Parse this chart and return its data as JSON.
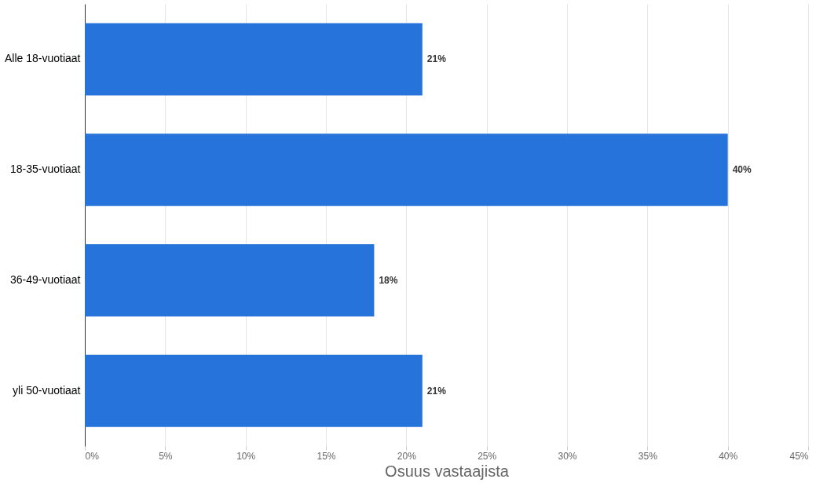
{
  "chart_data": {
    "type": "bar",
    "orientation": "horizontal",
    "xlabel": "Osuus vastaajista",
    "categories": [
      "Alle 18-vuotiaat",
      "18-35-vuotiaat",
      "36-49-vuotiaat",
      "yli 50-vuotiaat"
    ],
    "series": [
      {
        "color": "#2673db",
        "values": [
          21,
          40,
          18,
          21
        ],
        "value_labels": [
          "21%",
          "40%",
          "18%",
          "21%"
        ]
      }
    ],
    "xlim": [
      0,
      45
    ],
    "xticks": [
      {
        "value": 0,
        "label": "0%"
      },
      {
        "value": 5,
        "label": "5%"
      },
      {
        "value": 10,
        "label": "10%"
      },
      {
        "value": 15,
        "label": "15%"
      },
      {
        "value": 20,
        "label": "20%"
      },
      {
        "value": 25,
        "label": "25%"
      },
      {
        "value": 30,
        "label": "30%"
      },
      {
        "value": 35,
        "label": "35%"
      },
      {
        "value": 40,
        "label": "40%"
      },
      {
        "value": 45,
        "label": "45%"
      }
    ],
    "grid": "x"
  }
}
